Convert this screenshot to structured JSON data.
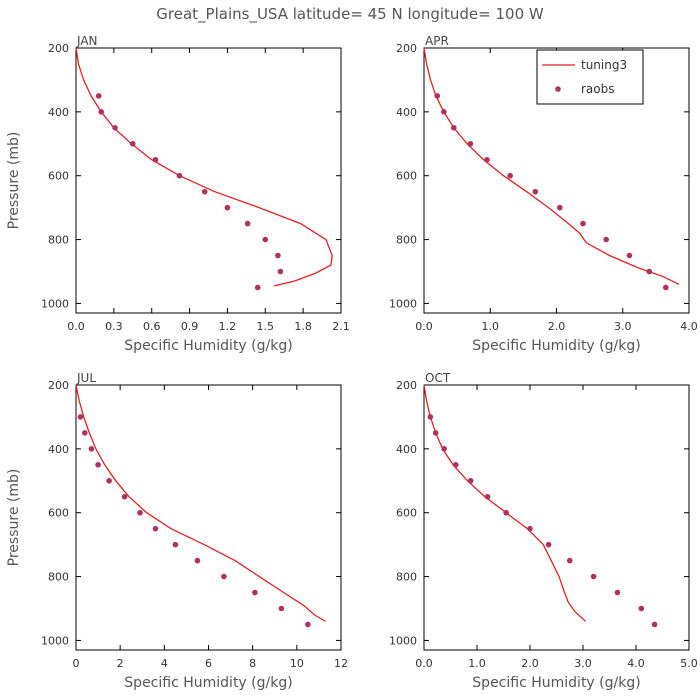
{
  "figure": {
    "title": "Great_Plains_USA   latitude= 45 N longitude= 100 W"
  },
  "legend": {
    "items": [
      {
        "name": "tuning3",
        "kind": "line",
        "color": "#dd2222"
      },
      {
        "name": "raobs",
        "kind": "marker",
        "color": "#b03060"
      }
    ],
    "panel": "APR",
    "placement": "top-right"
  },
  "chart_data": [
    {
      "type": "line",
      "title": "JAN",
      "xlabel": "Specific Humidity (g/kg)",
      "ylabel": "Pressure (mb)",
      "xlim": [
        0,
        2.1
      ],
      "ylim": [
        1030,
        200
      ],
      "xticks": [
        0.0,
        0.3,
        0.6,
        0.9,
        1.2,
        1.5,
        1.8,
        2.1
      ],
      "xtick_labels": [
        "0.0",
        "0.3",
        "0.6",
        "0.9",
        "1.2",
        "1.5",
        "1.8",
        "2.1"
      ],
      "yticks": [
        200,
        400,
        600,
        800,
        1000
      ],
      "ytick_labels": [
        "200",
        "400",
        "600",
        "800",
        "1000"
      ],
      "series": [
        {
          "name": "tuning3",
          "kind": "line",
          "color": "#dd2222",
          "points": [
            [
              0.0,
              200
            ],
            [
              0.02,
              250
            ],
            [
              0.06,
              300
            ],
            [
              0.12,
              350
            ],
            [
              0.2,
              400
            ],
            [
              0.3,
              450
            ],
            [
              0.44,
              500
            ],
            [
              0.6,
              550
            ],
            [
              0.82,
              600
            ],
            [
              1.1,
              650
            ],
            [
              1.45,
              700
            ],
            [
              1.78,
              750
            ],
            [
              1.98,
              800
            ],
            [
              2.03,
              850
            ],
            [
              2.02,
              880
            ],
            [
              1.9,
              905
            ],
            [
              1.73,
              930
            ],
            [
              1.57,
              945
            ]
          ]
        },
        {
          "name": "raobs",
          "kind": "marker",
          "color": "#b03060",
          "points": [
            [
              0.18,
              350
            ],
            [
              0.2,
              400
            ],
            [
              0.31,
              450
            ],
            [
              0.45,
              500
            ],
            [
              0.63,
              550
            ],
            [
              0.82,
              600
            ],
            [
              1.02,
              650
            ],
            [
              1.2,
              700
            ],
            [
              1.36,
              750
            ],
            [
              1.5,
              800
            ],
            [
              1.6,
              850
            ],
            [
              1.62,
              900
            ],
            [
              1.44,
              950
            ]
          ]
        }
      ]
    },
    {
      "type": "line",
      "title": "APR",
      "xlabel": "Specific Humidity (g/kg)",
      "ylabel": "",
      "xlim": [
        0,
        4.0
      ],
      "ylim": [
        1030,
        200
      ],
      "xticks": [
        0.0,
        1.0,
        2.0,
        3.0,
        4.0
      ],
      "xtick_labels": [
        "0.0",
        "1.0",
        "2.0",
        "3.0",
        "4.0"
      ],
      "yticks": [
        200,
        400,
        600,
        800,
        1000
      ],
      "ytick_labels": [
        "200",
        "400",
        "600",
        "800",
        "1000"
      ],
      "series": [
        {
          "name": "tuning3",
          "kind": "line",
          "color": "#dd2222",
          "points": [
            [
              0.0,
              200
            ],
            [
              0.04,
              250
            ],
            [
              0.1,
              300
            ],
            [
              0.18,
              350
            ],
            [
              0.3,
              400
            ],
            [
              0.45,
              450
            ],
            [
              0.65,
              500
            ],
            [
              0.9,
              550
            ],
            [
              1.2,
              600
            ],
            [
              1.55,
              650
            ],
            [
              1.88,
              700
            ],
            [
              2.18,
              750
            ],
            [
              2.35,
              780
            ],
            [
              2.45,
              810
            ],
            [
              2.8,
              850
            ],
            [
              3.25,
              890
            ],
            [
              3.6,
              915
            ],
            [
              3.85,
              940
            ]
          ]
        },
        {
          "name": "raobs",
          "kind": "marker",
          "color": "#b03060",
          "points": [
            [
              0.2,
              350
            ],
            [
              0.3,
              400
            ],
            [
              0.45,
              450
            ],
            [
              0.7,
              500
            ],
            [
              0.95,
              550
            ],
            [
              1.3,
              600
            ],
            [
              1.68,
              650
            ],
            [
              2.05,
              700
            ],
            [
              2.4,
              750
            ],
            [
              2.75,
              800
            ],
            [
              3.1,
              850
            ],
            [
              3.4,
              900
            ],
            [
              3.65,
              950
            ]
          ]
        }
      ]
    },
    {
      "type": "line",
      "title": "JUL",
      "xlabel": "Specific Humidity (g/kg)",
      "ylabel": "Pressure (mb)",
      "xlim": [
        0,
        12
      ],
      "ylim": [
        1030,
        200
      ],
      "xticks": [
        0,
        2,
        4,
        6,
        8,
        10,
        12
      ],
      "xtick_labels": [
        "0",
        "2",
        "4",
        "6",
        "8",
        "10",
        "12"
      ],
      "yticks": [
        200,
        400,
        600,
        800,
        1000
      ],
      "ytick_labels": [
        "200",
        "400",
        "600",
        "800",
        "1000"
      ],
      "series": [
        {
          "name": "tuning3",
          "kind": "line",
          "color": "#dd2222",
          "points": [
            [
              0.0,
              200
            ],
            [
              0.15,
              250
            ],
            [
              0.35,
              300
            ],
            [
              0.6,
              350
            ],
            [
              0.9,
              400
            ],
            [
              1.3,
              450
            ],
            [
              1.8,
              500
            ],
            [
              2.4,
              550
            ],
            [
              3.2,
              600
            ],
            [
              4.3,
              650
            ],
            [
              5.8,
              700
            ],
            [
              7.2,
              750
            ],
            [
              8.3,
              800
            ],
            [
              9.4,
              850
            ],
            [
              10.3,
              890
            ],
            [
              10.8,
              920
            ],
            [
              11.3,
              940
            ]
          ]
        },
        {
          "name": "raobs",
          "kind": "marker",
          "color": "#b03060",
          "points": [
            [
              0.2,
              300
            ],
            [
              0.4,
              350
            ],
            [
              0.7,
              400
            ],
            [
              1.0,
              450
            ],
            [
              1.5,
              500
            ],
            [
              2.2,
              550
            ],
            [
              2.9,
              600
            ],
            [
              3.6,
              650
            ],
            [
              4.5,
              700
            ],
            [
              5.5,
              750
            ],
            [
              6.7,
              800
            ],
            [
              8.1,
              850
            ],
            [
              9.3,
              900
            ],
            [
              10.5,
              950
            ]
          ]
        }
      ]
    },
    {
      "type": "line",
      "title": "OCT",
      "xlabel": "Specific Humidity (g/kg)",
      "ylabel": "",
      "xlim": [
        0,
        5.0
      ],
      "ylim": [
        1030,
        200
      ],
      "xticks": [
        0.0,
        1.0,
        2.0,
        3.0,
        4.0,
        5.0
      ],
      "xtick_labels": [
        "0.0",
        "1.0",
        "2.0",
        "3.0",
        "4.0",
        "5.0"
      ],
      "yticks": [
        200,
        400,
        600,
        800,
        1000
      ],
      "ytick_labels": [
        "200",
        "400",
        "600",
        "800",
        "1000"
      ],
      "series": [
        {
          "name": "tuning3",
          "kind": "line",
          "color": "#dd2222",
          "points": [
            [
              0.0,
              200
            ],
            [
              0.05,
              250
            ],
            [
              0.12,
              300
            ],
            [
              0.22,
              350
            ],
            [
              0.35,
              400
            ],
            [
              0.55,
              450
            ],
            [
              0.82,
              500
            ],
            [
              1.15,
              550
            ],
            [
              1.55,
              600
            ],
            [
              1.95,
              650
            ],
            [
              2.25,
              700
            ],
            [
              2.4,
              750
            ],
            [
              2.55,
              800
            ],
            [
              2.65,
              850
            ],
            [
              2.72,
              880
            ],
            [
              2.85,
              910
            ],
            [
              3.05,
              940
            ]
          ]
        },
        {
          "name": "raobs",
          "kind": "marker",
          "color": "#b03060",
          "points": [
            [
              0.12,
              300
            ],
            [
              0.22,
              350
            ],
            [
              0.38,
              400
            ],
            [
              0.6,
              450
            ],
            [
              0.88,
              500
            ],
            [
              1.2,
              550
            ],
            [
              1.55,
              600
            ],
            [
              2.0,
              650
            ],
            [
              2.35,
              700
            ],
            [
              2.75,
              750
            ],
            [
              3.2,
              800
            ],
            [
              3.65,
              850
            ],
            [
              4.1,
              900
            ],
            [
              4.35,
              950
            ]
          ]
        }
      ]
    }
  ]
}
